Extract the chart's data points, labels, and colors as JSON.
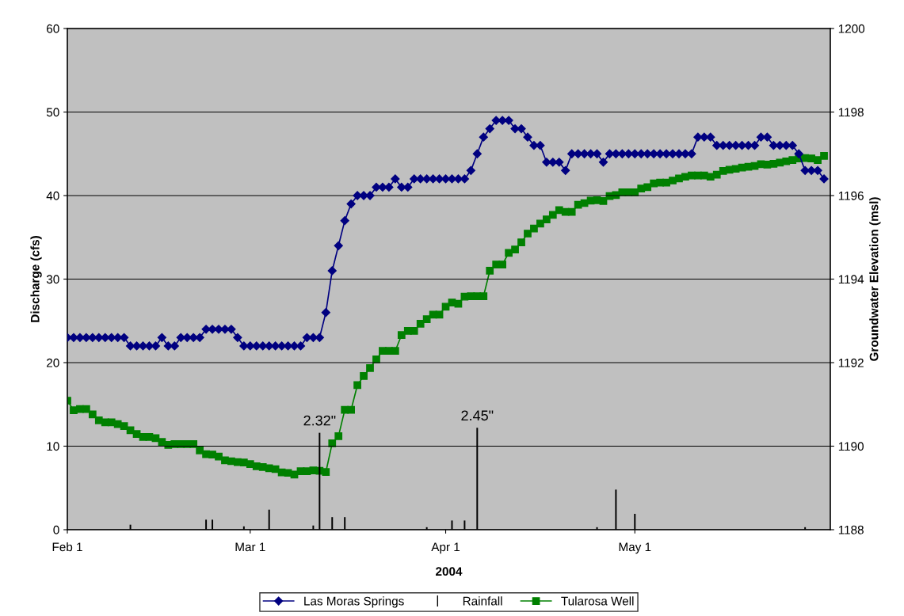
{
  "chart_data": {
    "type": "line",
    "xlabel": "2004",
    "ylabel": "Discharge (cfs)",
    "y2label": "Groundwater Elevation (msl)",
    "x": [
      "2004-02-01",
      "2004-02-02",
      "2004-02-03",
      "2004-02-04",
      "2004-02-05",
      "2004-02-06",
      "2004-02-07",
      "2004-02-08",
      "2004-02-09",
      "2004-02-10",
      "2004-02-11",
      "2004-02-12",
      "2004-02-13",
      "2004-02-14",
      "2004-02-15",
      "2004-02-16",
      "2004-02-17",
      "2004-02-18",
      "2004-02-19",
      "2004-02-20",
      "2004-02-21",
      "2004-02-22",
      "2004-02-23",
      "2004-02-24",
      "2004-02-25",
      "2004-02-26",
      "2004-02-27",
      "2004-02-28",
      "2004-02-29",
      "2004-03-01",
      "2004-03-02",
      "2004-03-03",
      "2004-03-04",
      "2004-03-05",
      "2004-03-06",
      "2004-03-07",
      "2004-03-08",
      "2004-03-09",
      "2004-03-10",
      "2004-03-11",
      "2004-03-12",
      "2004-03-13",
      "2004-03-14",
      "2004-03-15",
      "2004-03-16",
      "2004-03-17",
      "2004-03-18",
      "2004-03-19",
      "2004-03-20",
      "2004-03-21",
      "2004-03-22",
      "2004-03-23",
      "2004-03-24",
      "2004-03-25",
      "2004-03-26",
      "2004-03-27",
      "2004-03-28",
      "2004-03-29",
      "2004-03-30",
      "2004-03-31",
      "2004-04-01",
      "2004-04-02",
      "2004-04-03",
      "2004-04-04",
      "2004-04-05",
      "2004-04-06",
      "2004-04-07",
      "2004-04-08",
      "2004-04-09",
      "2004-04-10",
      "2004-04-11",
      "2004-04-12",
      "2004-04-13",
      "2004-04-14",
      "2004-04-15",
      "2004-04-16",
      "2004-04-17",
      "2004-04-18",
      "2004-04-19",
      "2004-04-20",
      "2004-04-21",
      "2004-04-22",
      "2004-04-23",
      "2004-04-24",
      "2004-04-25",
      "2004-04-26",
      "2004-04-27",
      "2004-04-28",
      "2004-04-29",
      "2004-04-30",
      "2004-05-01",
      "2004-05-02",
      "2004-05-03",
      "2004-05-04",
      "2004-05-05",
      "2004-05-06",
      "2004-05-07",
      "2004-05-08",
      "2004-05-09",
      "2004-05-10",
      "2004-05-11",
      "2004-05-12",
      "2004-05-13",
      "2004-05-14",
      "2004-05-15",
      "2004-05-16",
      "2004-05-17",
      "2004-05-18",
      "2004-05-19",
      "2004-05-20",
      "2004-05-21",
      "2004-05-22",
      "2004-05-23",
      "2004-05-24",
      "2004-05-25",
      "2004-05-26",
      "2004-05-27",
      "2004-05-28",
      "2004-05-29",
      "2004-05-30",
      "2004-05-31"
    ],
    "series": [
      {
        "name": "Las Moras Springs",
        "color": "#000080",
        "marker": "diamond",
        "values": [
          23,
          23,
          23,
          23,
          23,
          23,
          23,
          23,
          23,
          23,
          22,
          22,
          22,
          22,
          22,
          23,
          22,
          22,
          23,
          23,
          23,
          23,
          24,
          24,
          24,
          24,
          24,
          23,
          22,
          22,
          22,
          22,
          22,
          22,
          22,
          22,
          22,
          22,
          23,
          23,
          23,
          26,
          31,
          34,
          37,
          39,
          40,
          40,
          40,
          41,
          41,
          41,
          42,
          41,
          41,
          42,
          42,
          42,
          42,
          42,
          42,
          42,
          42,
          42,
          43,
          45,
          47,
          48,
          49,
          49,
          49,
          48,
          48,
          47,
          46,
          46,
          44,
          44,
          44,
          43,
          45,
          45,
          45,
          45,
          45,
          44,
          45,
          45,
          45,
          45,
          45,
          45,
          45,
          45,
          45,
          45,
          45,
          45,
          45,
          45,
          47,
          47,
          47,
          46,
          46,
          46,
          46,
          46,
          46,
          46,
          47,
          47,
          46,
          46,
          46,
          46,
          45,
          43,
          43,
          43,
          42
        ]
      },
      {
        "name": "Rainfall",
        "type": "bar",
        "color": "#000000",
        "x": [
          "2004-02-11",
          "2004-02-23",
          "2004-02-24",
          "2004-02-29",
          "2004-03-04",
          "2004-03-11",
          "2004-03-12",
          "2004-03-14",
          "2004-03-16",
          "2004-03-29",
          "2004-04-02",
          "2004-04-04",
          "2004-04-06",
          "2004-04-25",
          "2004-04-28",
          "2004-05-01",
          "2004-05-28"
        ],
        "values": [
          0.6,
          1.2,
          1.2,
          0.4,
          2.4,
          0.5,
          11.6,
          1.5,
          1.5,
          0.3,
          1.1,
          1.1,
          12.2,
          0.3,
          4.8,
          1.9,
          0.3
        ]
      },
      {
        "name": "Tularosa Well",
        "axis": "y2",
        "color": "#008000",
        "marker": "square",
        "values": [
          1191.09,
          1190.86,
          1190.89,
          1190.89,
          1190.76,
          1190.62,
          1190.57,
          1190.57,
          1190.53,
          1190.48,
          1190.38,
          1190.29,
          1190.22,
          1190.22,
          1190.19,
          1190.1,
          1190.03,
          1190.05,
          1190.05,
          1190.05,
          1190.05,
          1189.9,
          1189.81,
          1189.8,
          1189.75,
          1189.66,
          1189.64,
          1189.62,
          1189.61,
          1189.57,
          1189.52,
          1189.5,
          1189.47,
          1189.45,
          1189.37,
          1189.36,
          1189.32,
          1189.4,
          1189.4,
          1189.42,
          1189.41,
          1189.38,
          1190.07,
          1190.24,
          1190.87,
          1190.87,
          1191.46,
          1191.68,
          1191.87,
          1192.08,
          1192.28,
          1192.28,
          1192.28,
          1192.66,
          1192.76,
          1192.76,
          1192.93,
          1193.04,
          1193.15,
          1193.15,
          1193.34,
          1193.44,
          1193.41,
          1193.58,
          1193.59,
          1193.59,
          1193.59,
          1194.2,
          1194.35,
          1194.35,
          1194.63,
          1194.71,
          1194.88,
          1195.09,
          1195.21,
          1195.33,
          1195.43,
          1195.54,
          1195.65,
          1195.61,
          1195.61,
          1195.78,
          1195.82,
          1195.88,
          1195.89,
          1195.87,
          1195.99,
          1196.01,
          1196.08,
          1196.08,
          1196.08,
          1196.17,
          1196.2,
          1196.29,
          1196.31,
          1196.31,
          1196.36,
          1196.41,
          1196.45,
          1196.48,
          1196.48,
          1196.48,
          1196.45,
          1196.5,
          1196.59,
          1196.62,
          1196.64,
          1196.67,
          1196.69,
          1196.71,
          1196.75,
          1196.74,
          1196.76,
          1196.79,
          1196.82,
          1196.85,
          1196.89,
          1196.9,
          1196.89,
          1196.85,
          1196.95
        ]
      }
    ],
    "xlim": [
      "2004-02-01",
      "2004-06-01"
    ],
    "xticks": [
      {
        "value": "2004-02-01",
        "label": "Feb 1"
      },
      {
        "value": "2004-03-01",
        "label": "Mar 1"
      },
      {
        "value": "2004-04-01",
        "label": "Apr 1"
      },
      {
        "value": "2004-05-01",
        "label": "May 1"
      }
    ],
    "ylim": [
      0,
      60
    ],
    "yticks": [
      0,
      10,
      20,
      30,
      40,
      50,
      60
    ],
    "y2lim": [
      1188,
      1200
    ],
    "y2ticks": [
      1188,
      1190,
      1192,
      1194,
      1196,
      1198,
      1200
    ],
    "annotations": [
      {
        "text": "2.32\"",
        "x": "2004-03-12",
        "y": 11.6
      },
      {
        "text": "2.45\"",
        "x": "2004-04-06",
        "y": 12.2
      }
    ],
    "grid": "y",
    "legend": "bottom"
  }
}
